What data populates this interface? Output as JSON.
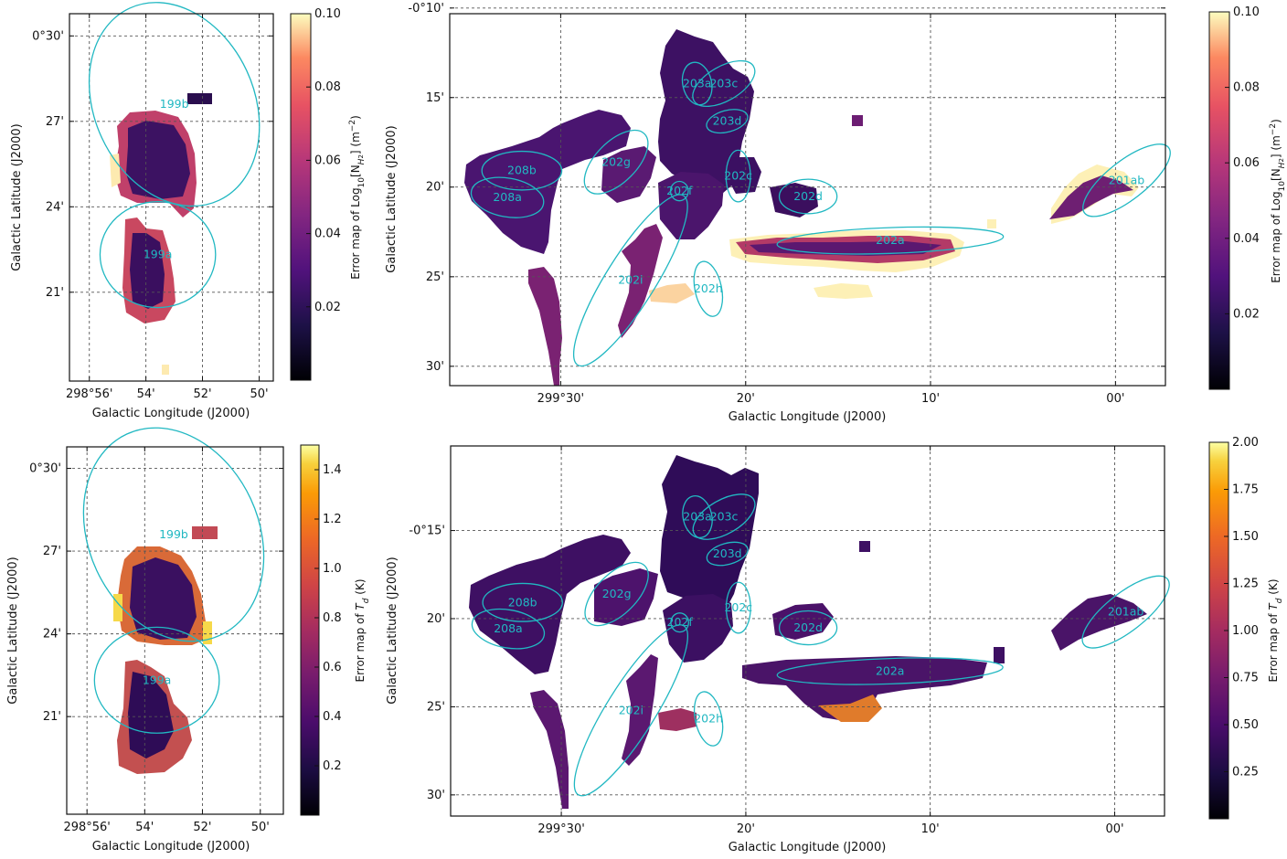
{
  "colors": {
    "ellipse": "#21b8c2",
    "grid": "#555555",
    "axis": "#111111"
  },
  "chart_data": [
    {
      "id": "p1",
      "type": "heatmap",
      "colormap": "inferno",
      "xlabel": "Galactic Longitude (J2000)",
      "ylabel": "Galactic Latitude (J2000)",
      "xlim": [
        298.945,
        298.825
      ],
      "ylim": [
        0.298,
        0.513
      ],
      "xticks": [
        298.9333,
        298.9,
        298.8667,
        298.8333
      ],
      "xtick_labels": [
        "298°56'",
        "54'",
        "52'",
        "50'"
      ],
      "yticks": [
        0.5,
        0.45,
        0.4,
        0.35
      ],
      "ytick_labels": [
        "0°30'",
        "27'",
        "24'",
        "21'"
      ],
      "colorbar": {
        "label": "Error map of Log10[N_H2] (m^-2)",
        "label_text": "Error map of Log",
        "label_sub": "10",
        "label_mid": "[N",
        "label_sub2": "H",
        "label_sub3": "2",
        "label_end": "] (m",
        "label_sup": "−2",
        "label_close": ")",
        "range": [
          0,
          0.1
        ],
        "ticks": [
          0.02,
          0.04,
          0.06,
          0.08,
          0.1
        ],
        "tick_labels": [
          "0.02",
          "0.04",
          "0.06",
          "0.08",
          "0.10"
        ]
      },
      "regions": [
        {
          "name": "199b",
          "l": 298.8833,
          "b": 0.46,
          "a": 0.047,
          "bb": 0.062,
          "ang": -25
        },
        {
          "name": "199a",
          "l": 298.893,
          "b": 0.372,
          "a": 0.034,
          "bb": 0.031,
          "ang": 0
        }
      ]
    },
    {
      "id": "p2",
      "type": "heatmap",
      "colormap": "inferno",
      "xlabel": "Galactic Longitude (J2000)",
      "ylabel": "Galactic Latitude (J2000)",
      "xlim": [
        299.6,
        298.955
      ],
      "ylim": [
        -0.518,
        -0.172
      ],
      "xticks": [
        299.5,
        299.3333,
        299.1667,
        299.0
      ],
      "xtick_labels": [
        "299°30'",
        "20'",
        "10'",
        "00'"
      ],
      "yticks": [
        -0.1667,
        -0.25,
        -0.3333,
        -0.4167,
        -0.5
      ],
      "ytick_labels": [
        "-0°10'",
        "15'",
        "20'",
        "25'",
        "30'"
      ],
      "colorbar": {
        "label": "Error map of Log10[N_H2] (m^-2)",
        "label_text": "Error map of Log",
        "label_sub": "10",
        "label_mid": "[N",
        "label_sub2": "H",
        "label_sub3": "2",
        "label_end": "] (m",
        "label_sup": "−2",
        "label_close": ")",
        "range": [
          0,
          0.1
        ],
        "ticks": [
          0.02,
          0.04,
          0.06,
          0.08,
          0.1
        ],
        "tick_labels": [
          "0.02",
          "0.04",
          "0.06",
          "0.08",
          "0.10"
        ]
      },
      "regions": [
        {
          "name": "203a",
          "l": 299.377,
          "b": -0.237,
          "a": 0.013,
          "bb": 0.02,
          "ang": -12
        },
        {
          "name": "203c",
          "l": 299.353,
          "b": -0.237,
          "a": 0.031,
          "bb": 0.016,
          "ang": -30
        },
        {
          "name": "203d",
          "l": 299.35,
          "b": -0.272,
          "a": 0.019,
          "bb": 0.01,
          "ang": -15
        },
        {
          "name": "208b",
          "l": 299.535,
          "b": -0.318,
          "a": 0.036,
          "bb": 0.018,
          "ang": 0
        },
        {
          "name": "208a",
          "l": 299.548,
          "b": -0.343,
          "a": 0.033,
          "bb": 0.018,
          "ang": 10
        },
        {
          "name": "202g",
          "l": 299.45,
          "b": -0.31,
          "a": 0.036,
          "bb": 0.019,
          "ang": -45
        },
        {
          "name": "202f",
          "l": 299.393,
          "b": -0.337,
          "a": 0.008,
          "bb": 0.009,
          "ang": 0
        },
        {
          "name": "202c",
          "l": 299.34,
          "b": -0.323,
          "a": 0.011,
          "bb": 0.024,
          "ang": 0
        },
        {
          "name": "202d",
          "l": 299.277,
          "b": -0.342,
          "a": 0.026,
          "bb": 0.016,
          "ang": 0
        },
        {
          "name": "202a",
          "l": 299.203,
          "b": -0.383,
          "a": 0.102,
          "bb": 0.012,
          "ang": -2
        },
        {
          "name": "202i",
          "l": 299.437,
          "b": -0.42,
          "a": 0.09,
          "bb": 0.023,
          "ang": -58
        },
        {
          "name": "202h",
          "l": 299.367,
          "b": -0.428,
          "a": 0.012,
          "bb": 0.026,
          "ang": -12
        },
        {
          "name": "201ab",
          "l": 298.99,
          "b": -0.327,
          "a": 0.048,
          "bb": 0.018,
          "ang": -38
        }
      ]
    },
    {
      "id": "p3",
      "type": "heatmap",
      "colormap": "inferno",
      "xlabel": "Galactic Longitude (J2000)",
      "ylabel": "Galactic Latitude (J2000)",
      "xlim": [
        298.945,
        298.82
      ],
      "ylim": [
        0.291,
        0.513
      ],
      "xticks": [
        298.9333,
        298.9,
        298.8667,
        298.8333
      ],
      "xtick_labels": [
        "298°56'",
        "54'",
        "52'",
        "50'"
      ],
      "yticks": [
        0.5,
        0.45,
        0.4,
        0.35
      ],
      "ytick_labels": [
        "0°30'",
        "27'",
        "24'",
        "21'"
      ],
      "colorbar": {
        "label": "Error map of T_d (K)",
        "label_text": "Error map of ",
        "label_sym": "T",
        "label_sub": "d",
        "label_end": " (K)",
        "range": [
          0,
          1.5
        ],
        "ticks": [
          0.2,
          0.4,
          0.6,
          0.8,
          1.0,
          1.2,
          1.4
        ],
        "tick_labels": [
          "0.2",
          "0.4",
          "0.6",
          "0.8",
          "1.0",
          "1.2",
          "1.4"
        ]
      },
      "regions": [
        {
          "name": "199b",
          "l": 298.8833,
          "b": 0.46,
          "a": 0.049,
          "bb": 0.067,
          "ang": -25
        },
        {
          "name": "199a",
          "l": 298.893,
          "b": 0.372,
          "a": 0.036,
          "bb": 0.032,
          "ang": 0
        }
      ]
    },
    {
      "id": "p4",
      "type": "heatmap",
      "colormap": "inferno",
      "xlabel": "Galactic Longitude (J2000)",
      "ylabel": "Galactic Latitude (J2000)",
      "xlim": [
        299.6,
        298.955
      ],
      "ylim": [
        -0.52,
        -0.17
      ],
      "xticks": [
        299.5,
        299.3333,
        299.1667,
        299.0
      ],
      "xtick_labels": [
        "299°30'",
        "20'",
        "10'",
        "00'"
      ],
      "yticks": [
        -0.25,
        -0.3333,
        -0.4167,
        -0.5
      ],
      "ytick_labels": [
        "-0°15'",
        "20'",
        "25'",
        "30'"
      ],
      "colorbar": {
        "label": "Error map of T_d (K)",
        "label_text": "Error map of ",
        "label_sym": "T",
        "label_sub": "d",
        "label_end": " (K)",
        "range": [
          0,
          2.0
        ],
        "ticks": [
          0.25,
          0.5,
          0.75,
          1.0,
          1.25,
          1.5,
          1.75,
          2.0
        ],
        "tick_labels": [
          "0.25",
          "0.50",
          "0.75",
          "1.00",
          "1.25",
          "1.50",
          "1.75",
          "2.00"
        ]
      },
      "regions": [
        {
          "name": "203a",
          "l": 299.377,
          "b": -0.237,
          "a": 0.013,
          "bb": 0.02,
          "ang": -12
        },
        {
          "name": "203c",
          "l": 299.353,
          "b": -0.237,
          "a": 0.031,
          "bb": 0.016,
          "ang": -30
        },
        {
          "name": "203d",
          "l": 299.35,
          "b": -0.272,
          "a": 0.019,
          "bb": 0.01,
          "ang": -15
        },
        {
          "name": "208b",
          "l": 299.535,
          "b": -0.318,
          "a": 0.036,
          "bb": 0.018,
          "ang": 0
        },
        {
          "name": "208a",
          "l": 299.548,
          "b": -0.343,
          "a": 0.033,
          "bb": 0.018,
          "ang": 10
        },
        {
          "name": "202g",
          "l": 299.45,
          "b": -0.31,
          "a": 0.036,
          "bb": 0.019,
          "ang": -45
        },
        {
          "name": "202f",
          "l": 299.393,
          "b": -0.337,
          "a": 0.008,
          "bb": 0.009,
          "ang": 0
        },
        {
          "name": "202c",
          "l": 299.34,
          "b": -0.323,
          "a": 0.011,
          "bb": 0.024,
          "ang": 0
        },
        {
          "name": "202d",
          "l": 299.277,
          "b": -0.342,
          "a": 0.026,
          "bb": 0.016,
          "ang": 0
        },
        {
          "name": "202a",
          "l": 299.203,
          "b": -0.383,
          "a": 0.102,
          "bb": 0.012,
          "ang": -2
        },
        {
          "name": "202i",
          "l": 299.437,
          "b": -0.42,
          "a": 0.09,
          "bb": 0.023,
          "ang": -58
        },
        {
          "name": "202h",
          "l": 299.367,
          "b": -0.428,
          "a": 0.012,
          "bb": 0.026,
          "ang": -12
        },
        {
          "name": "201ab",
          "l": 298.99,
          "b": -0.327,
          "a": 0.048,
          "bb": 0.018,
          "ang": -38
        }
      ]
    }
  ]
}
